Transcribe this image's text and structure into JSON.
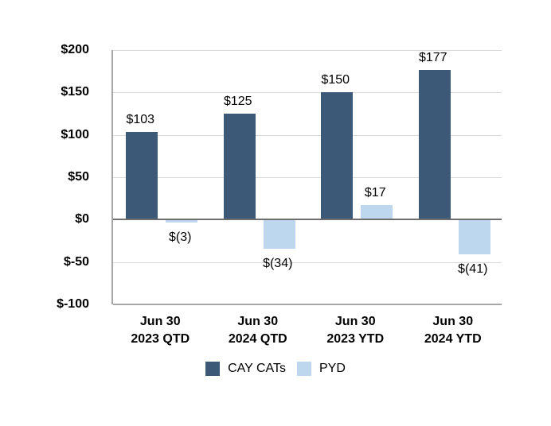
{
  "chart_data": {
    "type": "bar",
    "title": "",
    "xlabel": "",
    "ylabel": "",
    "categories": [
      "Jun 30\n2023 QTD",
      "Jun 30\n2024 QTD",
      "Jun 30\n2023 YTD",
      "Jun 30\n2024 YTD"
    ],
    "series": [
      {
        "name": "CAY CATs",
        "color": "#3c5a78",
        "values": [
          103,
          125,
          150,
          177
        ],
        "labels": [
          "$103",
          "$125",
          "$150",
          "$177"
        ]
      },
      {
        "name": "PYD",
        "color": "#bdd7ee",
        "values": [
          -3,
          -34,
          17,
          -41
        ],
        "labels": [
          "$(3)",
          "$(34)",
          "$17",
          "$(41)"
        ]
      }
    ],
    "y_axis": {
      "min": -100,
      "max": 200,
      "step": 50,
      "tick_values": [
        200,
        150,
        100,
        50,
        0,
        -50,
        -100
      ],
      "tick_labels": [
        "$200",
        "$150",
        "$100",
        "$50",
        "$0",
        "$-50",
        "$-100"
      ]
    },
    "grid": true,
    "legend_position": "bottom",
    "colors": {
      "background": "#ffffff",
      "gridline": "#d9d9d9",
      "zero_line": "#6e6e6e",
      "axis_line": "#a6a6a6",
      "text": "#000000"
    }
  }
}
